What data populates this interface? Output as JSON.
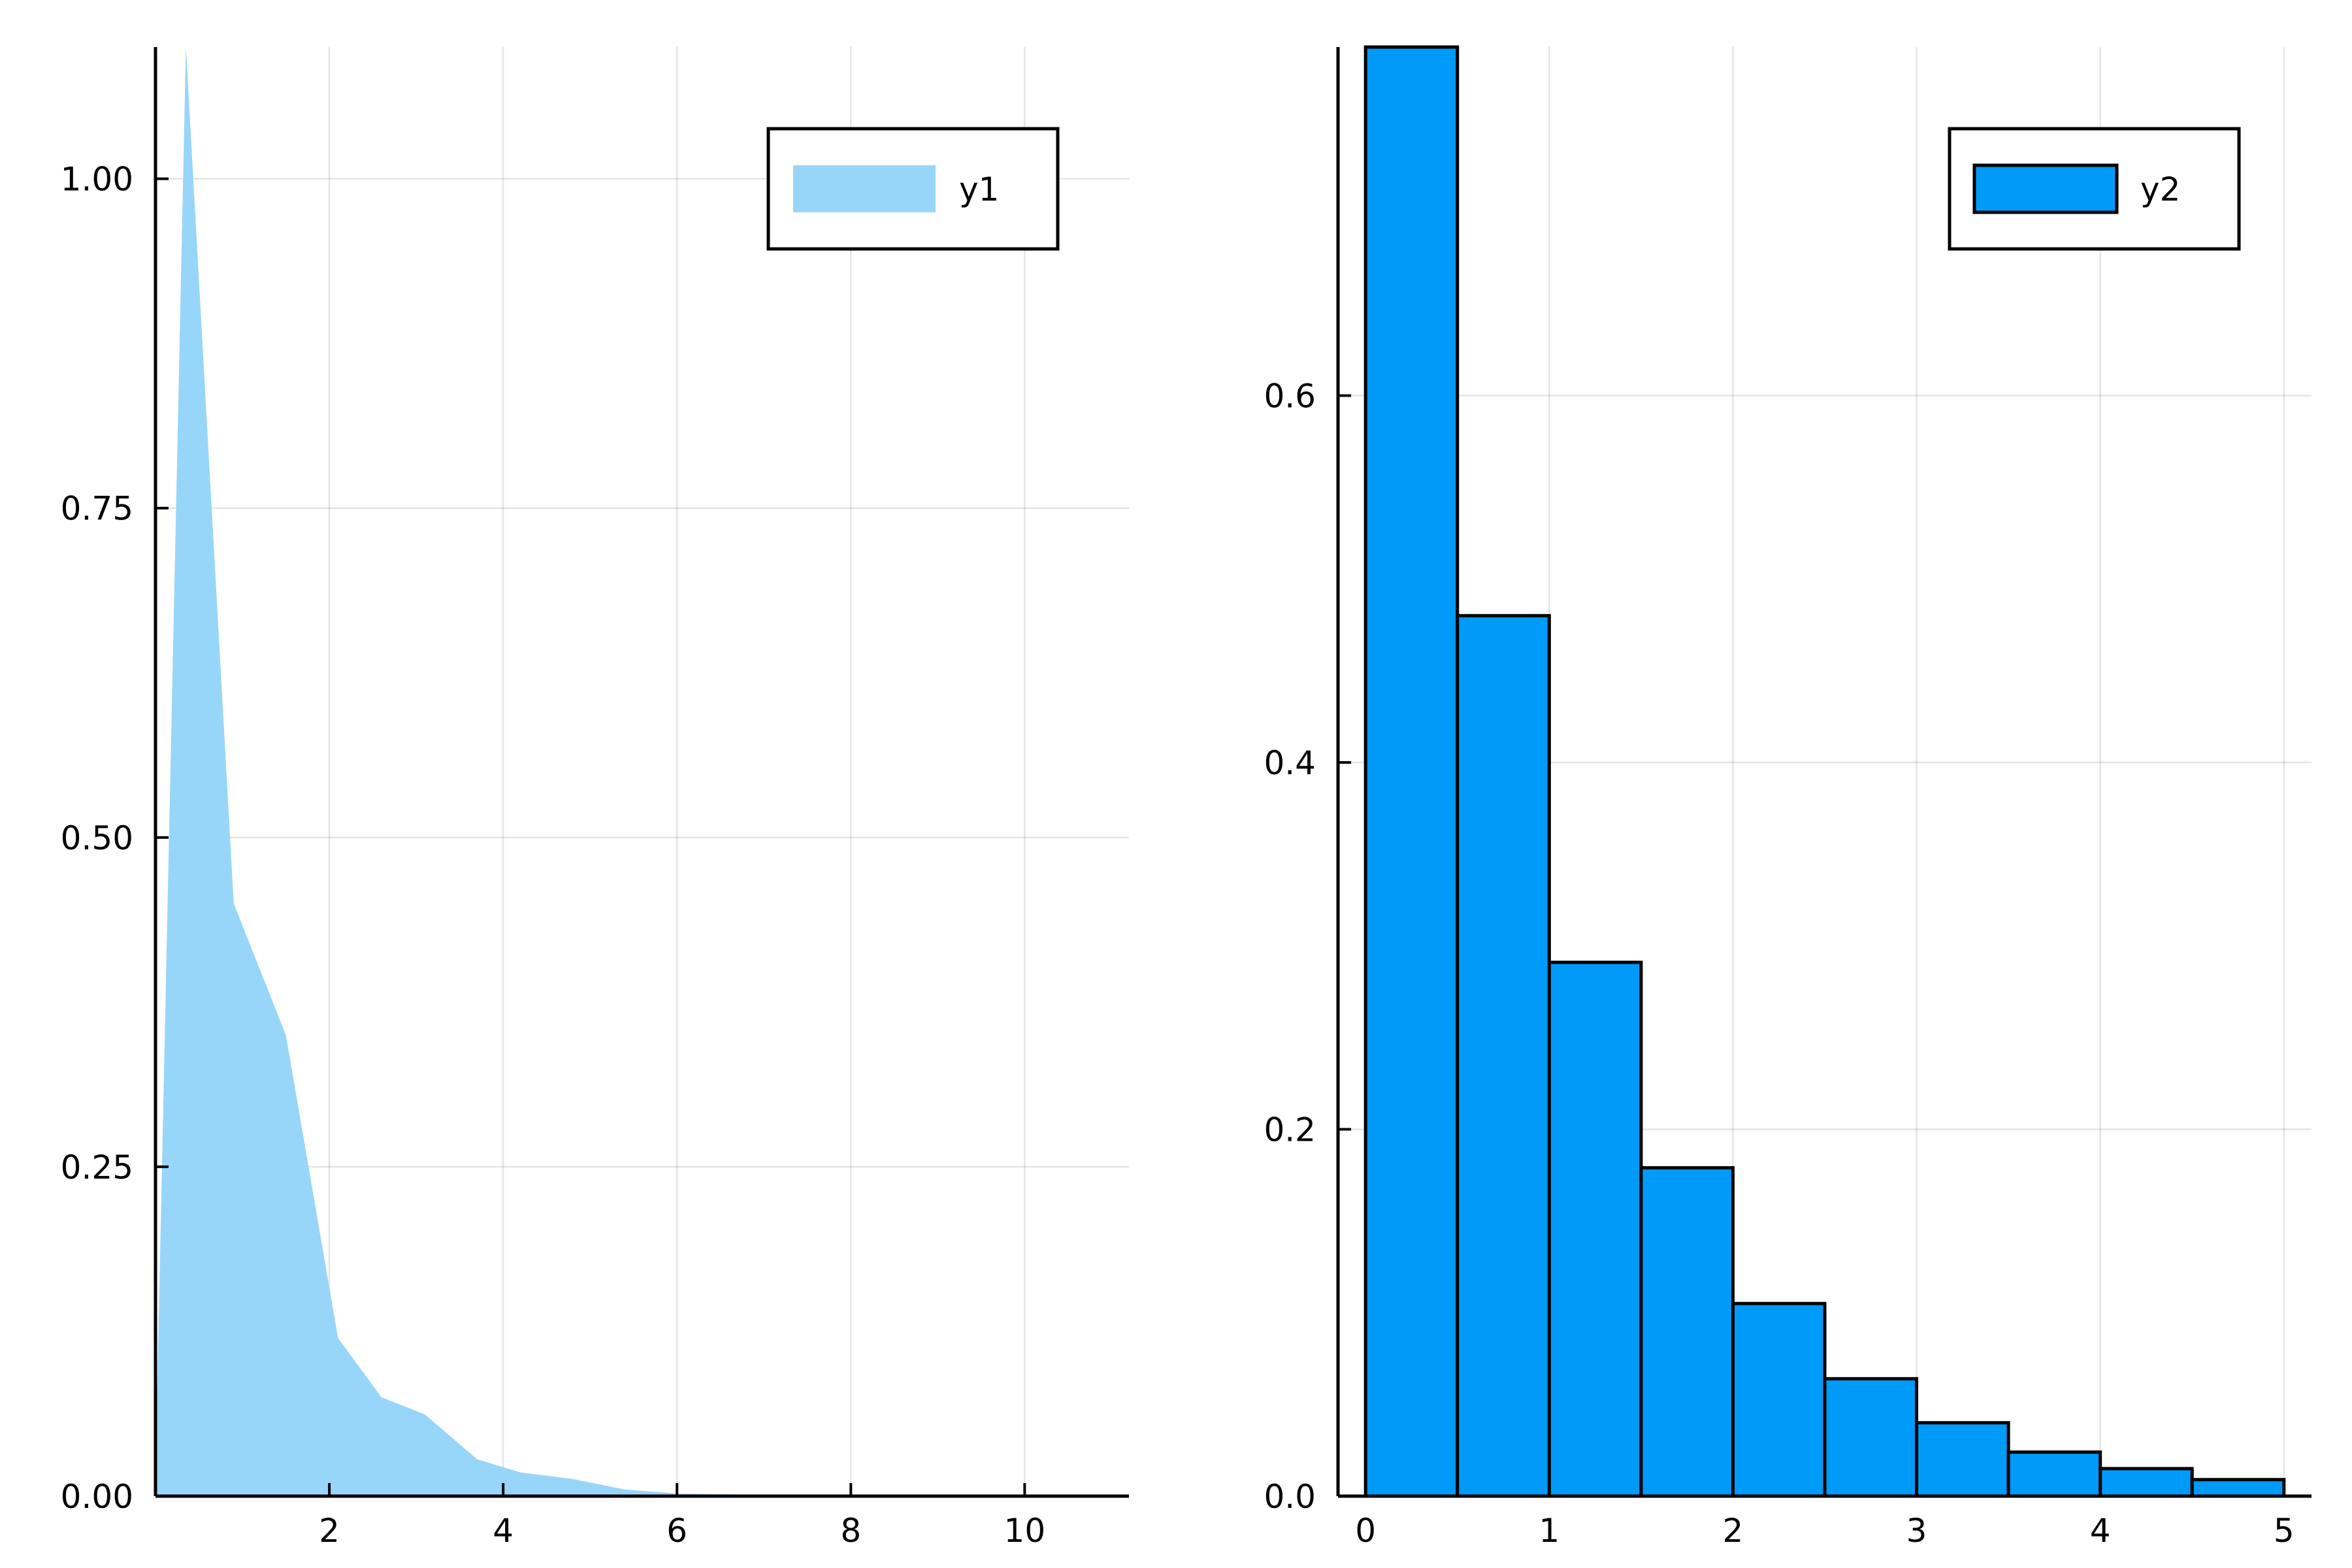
{
  "chart_data": [
    {
      "type": "area",
      "series": [
        {
          "name": "y1",
          "x": [
            0.0,
            0.35,
            0.9,
            1.5,
            2.1,
            2.6,
            3.1,
            3.7,
            4.2,
            4.8,
            5.4,
            6.0,
            7.0,
            8.0,
            9.0,
            10.0,
            11.0
          ],
          "y": [
            0.02,
            1.1,
            0.45,
            0.35,
            0.12,
            0.075,
            0.062,
            0.028,
            0.018,
            0.013,
            0.005,
            0.002,
            0.001,
            0.0005,
            0.0003,
            0.0002,
            0.0001
          ],
          "color": "#98d6f9"
        }
      ],
      "xlim": [
        0,
        11.2
      ],
      "ylim": [
        0,
        1.1
      ],
      "xticks": [
        2,
        4,
        6,
        8,
        10
      ],
      "xtick_labels": [
        "2",
        "4",
        "6",
        "8",
        "10"
      ],
      "yticks": [
        0,
        0.25,
        0.5,
        0.75,
        1.0
      ],
      "ytick_labels": [
        "0.00",
        "0.25",
        "0.50",
        "0.75",
        "1.00"
      ],
      "grid": true,
      "legend": "top-right"
    },
    {
      "type": "bar",
      "series": [
        {
          "name": "y2",
          "bins": [
            0,
            0.5,
            1.0,
            1.5,
            2.0,
            2.5,
            3.0,
            3.5,
            4.0,
            4.5,
            5.0
          ],
          "values": [
            0.79,
            0.48,
            0.291,
            0.179,
            0.105,
            0.064,
            0.04,
            0.024,
            0.015,
            0.009
          ],
          "color": "#009af9"
        }
      ],
      "xlim": [
        -0.15,
        5.15
      ],
      "ylim": [
        0,
        0.79
      ],
      "xticks": [
        0,
        1,
        2,
        3,
        4,
        5
      ],
      "xtick_labels": [
        "0",
        "1",
        "2",
        "3",
        "4",
        "5"
      ],
      "yticks": [
        0,
        0.2,
        0.4,
        0.6
      ],
      "ytick_labels": [
        "0.0",
        "0.2",
        "0.4",
        "0.6"
      ],
      "grid": true,
      "legend": "top-right"
    }
  ]
}
